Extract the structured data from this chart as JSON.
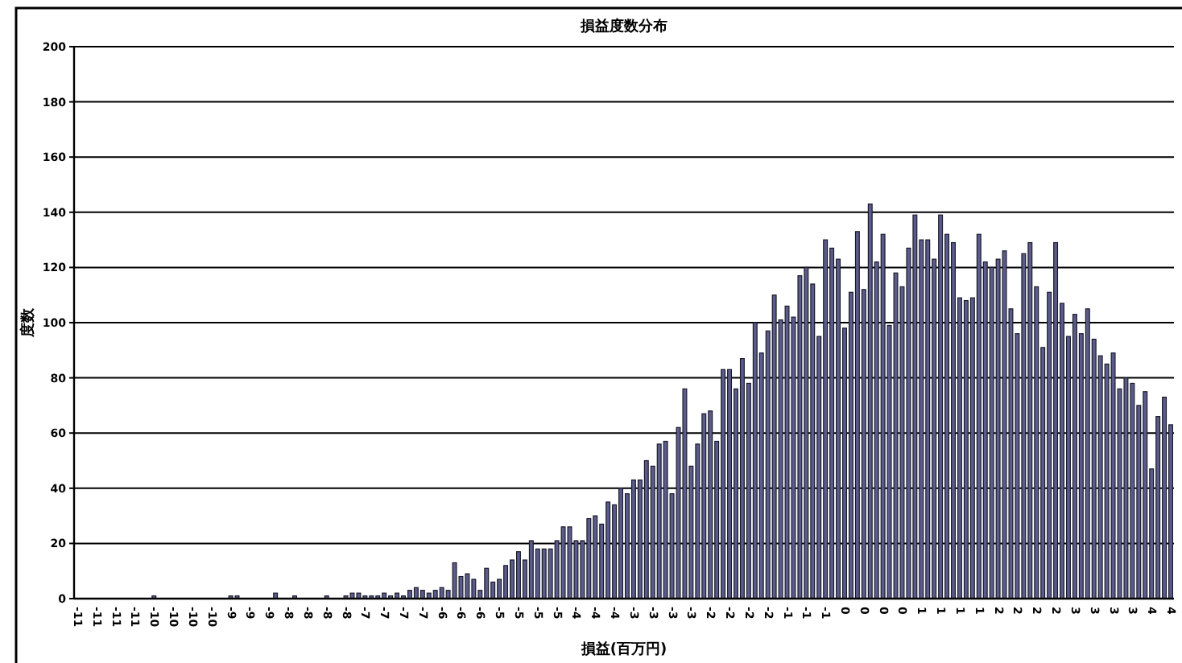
{
  "chart_data": {
    "type": "bar",
    "title": "損益度数分布",
    "xlabel": "損益(百万円)",
    "ylabel": "度数",
    "categories": [
      "-11",
      null,
      null,
      "-11",
      null,
      null,
      "-11",
      null,
      null,
      "-11",
      null,
      null,
      "-10",
      null,
      null,
      "-10",
      null,
      null,
      "-10",
      null,
      null,
      "-10",
      null,
      null,
      "-9",
      null,
      null,
      "-9",
      null,
      null,
      "-9",
      null,
      null,
      "-8",
      null,
      null,
      "-8",
      null,
      null,
      "-8",
      null,
      null,
      "-8",
      null,
      null,
      "-7",
      null,
      null,
      "-7",
      null,
      null,
      "-7",
      null,
      null,
      "-7",
      null,
      null,
      "-6",
      null,
      null,
      "-6",
      null,
      null,
      "-6",
      null,
      null,
      "-5",
      null,
      null,
      "-5",
      null,
      null,
      "-5",
      null,
      null,
      "-5",
      null,
      null,
      "-4",
      null,
      null,
      "-4",
      null,
      null,
      "-4",
      null,
      null,
      "-3",
      null,
      null,
      "-3",
      null,
      null,
      "-3",
      null,
      null,
      "-3",
      null,
      null,
      "-2",
      null,
      null,
      "-2",
      null,
      null,
      "-2",
      null,
      null,
      "-2",
      null,
      null,
      "-1",
      null,
      null,
      "-1",
      null,
      null,
      "-1",
      null,
      null,
      "0",
      null,
      null,
      "0",
      null,
      null,
      "0",
      null,
      null,
      "0",
      null,
      null,
      "1",
      null,
      null,
      "1",
      null,
      null,
      "1",
      null,
      null,
      "1",
      null,
      null,
      "2",
      null,
      null,
      "2",
      null,
      null,
      "2",
      null,
      null,
      "2",
      null,
      null,
      "3",
      null,
      null,
      "3",
      null,
      null,
      "3",
      null,
      null,
      "3",
      null,
      null,
      "4",
      null,
      null,
      "4"
    ],
    "values": [
      0,
      0,
      0,
      0,
      0,
      0,
      0,
      0,
      0,
      0,
      0,
      0,
      1,
      0,
      0,
      0,
      0,
      0,
      0,
      0,
      0,
      0,
      0,
      0,
      1,
      1,
      0,
      0,
      0,
      0,
      0,
      2,
      0,
      0,
      1,
      0,
      0,
      0,
      0,
      1,
      0,
      0,
      1,
      2,
      2,
      1,
      1,
      1,
      2,
      1,
      2,
      1,
      3,
      4,
      3,
      2,
      3,
      4,
      3,
      13,
      8,
      9,
      7,
      3,
      11,
      6,
      7,
      12,
      14,
      17,
      14,
      21,
      18,
      18,
      18,
      21,
      26,
      26,
      21,
      21,
      29,
      30,
      27,
      35,
      34,
      40,
      38,
      43,
      43,
      50,
      48,
      56,
      57,
      38,
      62,
      76,
      48,
      56,
      67,
      68,
      57,
      83,
      83,
      76,
      87,
      78,
      100,
      89,
      97,
      110,
      101,
      106,
      102,
      117,
      120,
      114,
      95,
      130,
      127,
      123,
      98,
      111,
      133,
      112,
      143,
      122,
      132,
      99,
      118,
      113,
      127,
      139,
      130,
      130,
      123,
      139,
      132,
      129,
      109,
      108,
      109,
      132,
      122,
      120,
      123,
      126,
      105,
      96,
      125,
      129,
      113,
      91,
      111,
      129,
      107,
      95,
      103,
      96,
      105,
      94,
      88,
      85,
      89,
      76,
      80,
      78,
      70,
      75,
      47,
      66,
      73,
      63
    ],
    "color": "#5c5c8c",
    "ylim": [
      0,
      200
    ],
    "yticks": [
      0,
      20,
      40,
      60,
      80,
      100,
      120,
      140,
      160,
      180,
      200
    ],
    "grid": "y"
  }
}
